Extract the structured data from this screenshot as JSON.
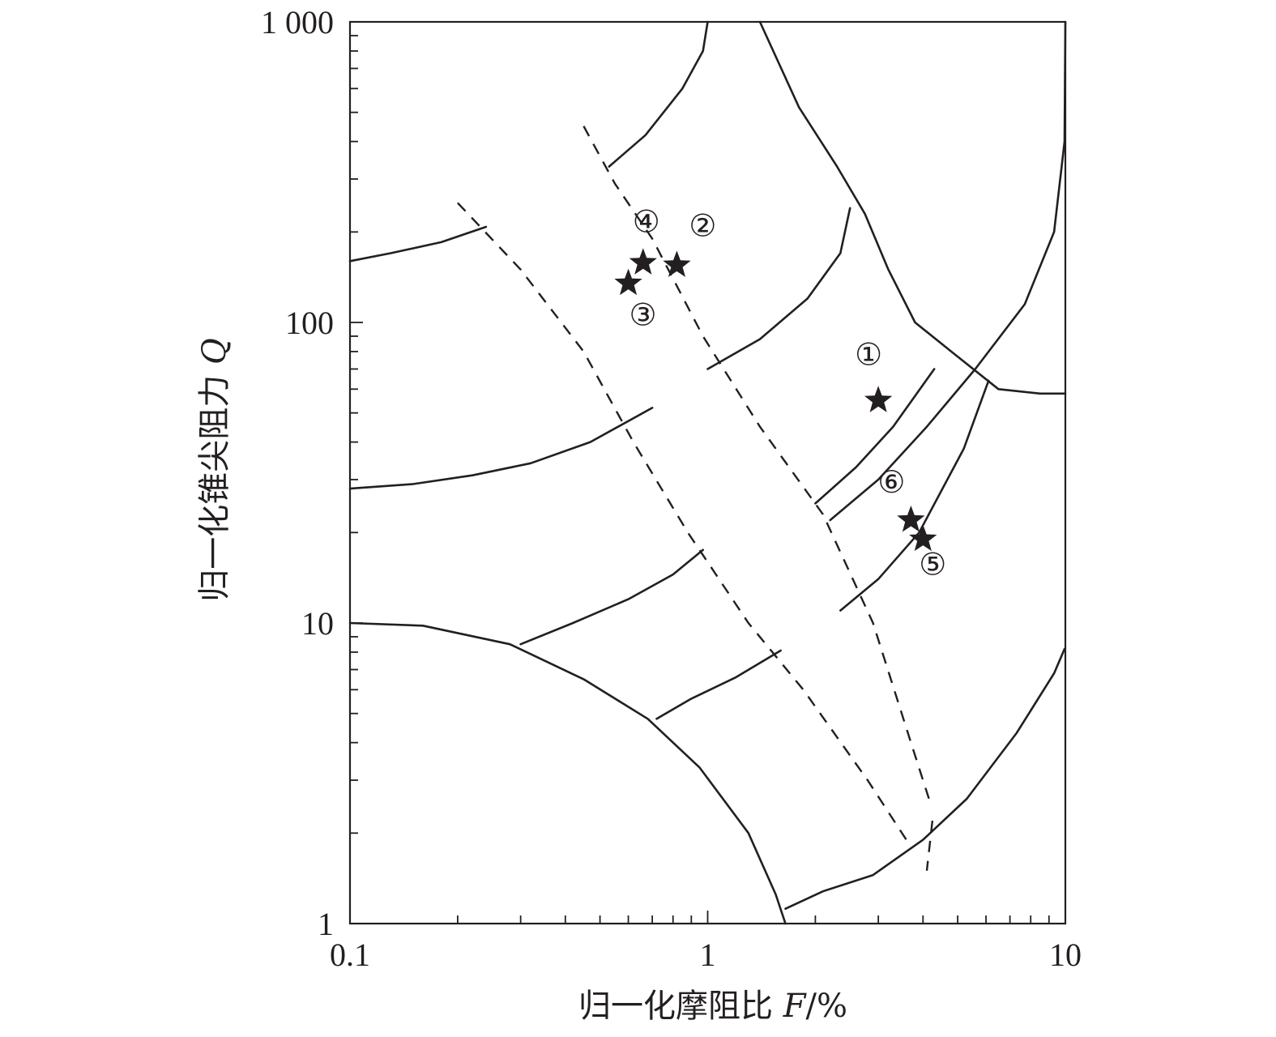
{
  "chart_data": {
    "type": "scatter",
    "title": "",
    "xlabel": {
      "prefix": "归一化摩阻比 ",
      "var": "F",
      "suffix": "/%"
    },
    "ylabel": {
      "prefix": "归一化锥尖阻力 ",
      "var": "Q"
    },
    "xscale": "log",
    "yscale": "log",
    "xlim": [
      0.1,
      10
    ],
    "ylim": [
      1,
      1000
    ],
    "x_ticks": [
      {
        "value": 0.1,
        "label": "0.1"
      },
      {
        "value": 1,
        "label": "1"
      },
      {
        "value": 10,
        "label": "10"
      }
    ],
    "y_ticks": [
      {
        "value": 1,
        "label": "1"
      },
      {
        "value": 10,
        "label": "10"
      },
      {
        "value": 100,
        "label": "100"
      },
      {
        "value": 1000,
        "label": "1 000"
      }
    ],
    "grid": false,
    "points": [
      {
        "label": "①",
        "x": 3.0,
        "y": 55,
        "marker": "star"
      },
      {
        "label": "②",
        "x": 0.82,
        "y": 155,
        "marker": "star"
      },
      {
        "label": "③",
        "x": 0.6,
        "y": 135,
        "marker": "star"
      },
      {
        "label": "④",
        "x": 0.66,
        "y": 158,
        "marker": "star"
      },
      {
        "label": "⑤",
        "x": 4.0,
        "y": 19,
        "marker": "star"
      },
      {
        "label": "⑥",
        "x": 3.7,
        "y": 22,
        "marker": "star"
      }
    ],
    "boundary_lines": [
      {
        "style": "solid",
        "points": [
          [
            0.1,
            160
          ],
          [
            0.13,
            170
          ],
          [
            0.18,
            185
          ],
          [
            0.24,
            208
          ]
        ]
      },
      {
        "style": "solid",
        "points": [
          [
            0.53,
            330
          ],
          [
            0.67,
            420
          ],
          [
            0.85,
            600
          ],
          [
            0.97,
            800
          ],
          [
            1.0,
            1000
          ]
        ]
      },
      {
        "style": "solid",
        "points": [
          [
            1.4,
            1000
          ],
          [
            1.8,
            520
          ],
          [
            2.3,
            330
          ],
          [
            2.75,
            230
          ],
          [
            3.2,
            150
          ],
          [
            3.8,
            100
          ],
          [
            4.8,
            80
          ],
          [
            6.5,
            60
          ],
          [
            8.5,
            58
          ],
          [
            10,
            58
          ]
        ]
      },
      {
        "style": "solid",
        "points": [
          [
            10,
            1000
          ],
          [
            9.95,
            400
          ],
          [
            9.3,
            200
          ],
          [
            7.7,
            115
          ],
          [
            5.6,
            70
          ],
          [
            4.1,
            45
          ],
          [
            3.0,
            30
          ],
          [
            2.2,
            22
          ]
        ]
      },
      {
        "style": "solid",
        "points": [
          [
            1.0,
            70
          ],
          [
            1.4,
            88
          ],
          [
            1.9,
            120
          ],
          [
            2.35,
            170
          ],
          [
            2.5,
            240
          ]
        ]
      },
      {
        "style": "solid",
        "points": [
          [
            0.1,
            28
          ],
          [
            0.15,
            29
          ],
          [
            0.22,
            31
          ],
          [
            0.32,
            34
          ],
          [
            0.47,
            40
          ],
          [
            0.7,
            52
          ]
        ]
      },
      {
        "style": "solid",
        "points": [
          [
            2.0,
            25
          ],
          [
            2.6,
            33
          ],
          [
            3.3,
            45
          ],
          [
            4.3,
            70
          ]
        ]
      },
      {
        "style": "solid",
        "points": [
          [
            2.35,
            11
          ],
          [
            3.0,
            14
          ],
          [
            3.9,
            20
          ],
          [
            5.2,
            38
          ],
          [
            6.1,
            64
          ]
        ]
      },
      {
        "style": "solid",
        "points": [
          [
            0.3,
            8.5
          ],
          [
            0.42,
            10
          ],
          [
            0.6,
            12
          ],
          [
            0.8,
            14.5
          ],
          [
            0.97,
            17.5
          ]
        ]
      },
      {
        "style": "solid",
        "points": [
          [
            0.1,
            10
          ],
          [
            0.16,
            9.8
          ],
          [
            0.28,
            8.5
          ],
          [
            0.45,
            6.5
          ],
          [
            0.68,
            4.8
          ],
          [
            0.95,
            3.3
          ],
          [
            1.3,
            2.0
          ],
          [
            1.55,
            1.25
          ],
          [
            1.65,
            1
          ]
        ]
      },
      {
        "style": "solid",
        "points": [
          [
            0.72,
            4.8
          ],
          [
            0.9,
            5.6
          ],
          [
            1.2,
            6.6
          ],
          [
            1.6,
            8.1
          ]
        ]
      },
      {
        "style": "solid",
        "points": [
          [
            1.65,
            1.12
          ],
          [
            2.1,
            1.28
          ],
          [
            2.9,
            1.45
          ],
          [
            4.0,
            1.9
          ],
          [
            5.3,
            2.6
          ],
          [
            7.3,
            4.3
          ],
          [
            9.3,
            6.8
          ],
          [
            9.95,
            8.2
          ]
        ]
      }
    ],
    "dashed_lines": [
      {
        "style": "dashed",
        "points": [
          [
            0.45,
            450
          ],
          [
            0.55,
            290
          ],
          [
            0.7,
            190
          ],
          [
            0.97,
            90
          ],
          [
            1.4,
            45
          ],
          [
            2.1,
            23
          ],
          [
            2.9,
            10
          ],
          [
            3.7,
            4
          ],
          [
            4.2,
            2.5
          ]
        ]
      },
      {
        "style": "dashed",
        "points": [
          [
            0.2,
            250
          ],
          [
            0.3,
            150
          ],
          [
            0.45,
            80
          ],
          [
            0.62,
            40
          ],
          [
            0.88,
            20
          ],
          [
            1.3,
            10
          ],
          [
            1.85,
            6
          ],
          [
            2.8,
            3
          ],
          [
            3.7,
            1.8
          ]
        ]
      },
      {
        "style": "dashed",
        "points": [
          [
            4.25,
            2.2
          ],
          [
            4.1,
            1.5
          ]
        ]
      }
    ]
  }
}
